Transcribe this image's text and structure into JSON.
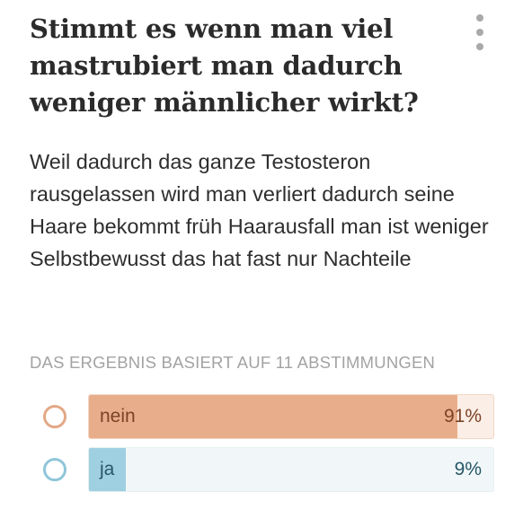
{
  "question": {
    "title": "Stimmt es wenn man viel mastrubiert man dadurch weniger männlicher wirkt?",
    "body": "Weil dadurch das ganze Testosteron rausgelassen wird man verliert dadurch seine Haare bekommt früh Haarausfall man ist weniger Selbstbewusst das hat fast nur Nachteile"
  },
  "menu": {
    "icon": "more-vertical-icon"
  },
  "poll": {
    "result_label": "DAS ERGEBNIS BASIERT AUF 11 ABSTIMMUNGEN",
    "options": [
      {
        "label": "nein",
        "percent_text": "91%",
        "fraction": 0.91,
        "color": "#e8ae8b"
      },
      {
        "label": "ja",
        "percent_text": "9%",
        "fraction": 0.09,
        "color": "#9fd0e1"
      }
    ]
  }
}
